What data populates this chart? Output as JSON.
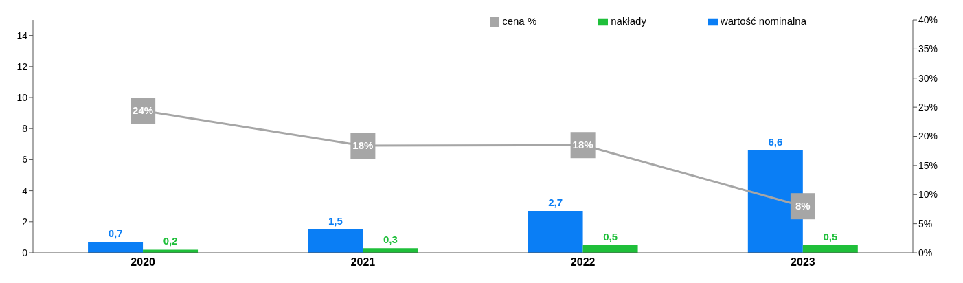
{
  "chart_data": {
    "type": "bar",
    "categories": [
      "2020",
      "2021",
      "2022",
      "2023"
    ],
    "series": [
      {
        "name": "wartość nominalna",
        "color": "#0a7ef5",
        "values": [
          0.7,
          1.5,
          2.7,
          6.6
        ],
        "value_labels": [
          "0,7",
          "1,5",
          "2,7",
          "6,6"
        ]
      },
      {
        "name": "nakłady",
        "color": "#1fbf3a",
        "values": [
          0.2,
          0.3,
          0.5,
          0.5
        ],
        "value_labels": [
          "0,2",
          "0,3",
          "0,5",
          "0,5"
        ]
      },
      {
        "name": "cena %",
        "type": "line",
        "axis": "y2",
        "color": "#a6a6a6",
        "marker": "square",
        "values": [
          24.4,
          18.4,
          18.5,
          8
        ],
        "value_labels": [
          "24%",
          "18%",
          "18%",
          "8%"
        ]
      }
    ],
    "ylim": [
      0,
      15
    ],
    "yticks": [
      0,
      2,
      4,
      6,
      8,
      10,
      12,
      14
    ],
    "y2lim": [
      0,
      40
    ],
    "y2ticks": [
      {
        "value": 0,
        "label": "0%"
      },
      {
        "value": 5,
        "label": "5%"
      },
      {
        "value": 10,
        "label": "10%"
      },
      {
        "value": 15,
        "label": "15%"
      },
      {
        "value": 20,
        "label": "20%"
      },
      {
        "value": 25,
        "label": "25%"
      },
      {
        "value": 30,
        "label": "30%"
      },
      {
        "value": 35,
        "label": "35%"
      },
      {
        "value": 40,
        "label": "40%"
      }
    ],
    "grid": false,
    "legend": "top right"
  }
}
